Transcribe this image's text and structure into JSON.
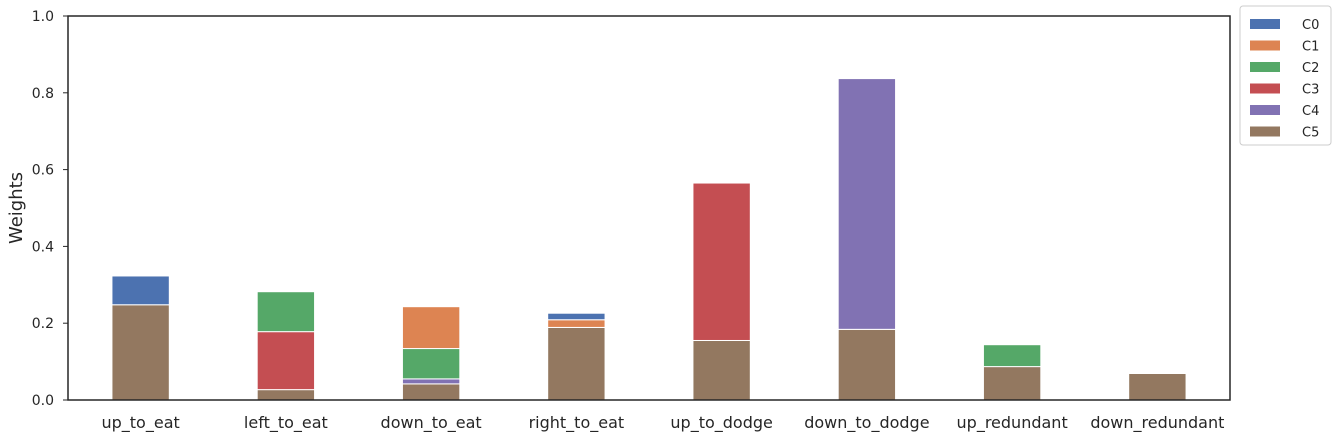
{
  "chart_data": {
    "type": "bar",
    "stacked": true,
    "categories": [
      "up_to_eat",
      "left_to_eat",
      "down_to_eat",
      "right_to_eat",
      "up_to_dodge",
      "down_to_dodge",
      "up_redundant",
      "down_redundant"
    ],
    "series": [
      {
        "name": "C0",
        "color": "#4c72b0",
        "values": [
          0.075,
          0,
          0,
          0.017,
          0,
          0,
          0,
          0
        ]
      },
      {
        "name": "C1",
        "color": "#dd8452",
        "values": [
          0,
          0,
          0.109,
          0.02,
          0,
          0,
          0,
          0
        ]
      },
      {
        "name": "C2",
        "color": "#55a868",
        "values": [
          0,
          0.104,
          0.079,
          0,
          0,
          0,
          0.057,
          0
        ]
      },
      {
        "name": "C3",
        "color": "#c44e52",
        "values": [
          0,
          0.151,
          0,
          0,
          0.41,
          0,
          0,
          0
        ]
      },
      {
        "name": "C4",
        "color": "#8172b3",
        "values": [
          0,
          0,
          0.013,
          0,
          0,
          0.653,
          0,
          0
        ]
      },
      {
        "name": "C5",
        "color": "#937860",
        "values": [
          0.248,
          0.027,
          0.042,
          0.189,
          0.155,
          0.184,
          0.087,
          0.069
        ]
      }
    ],
    "stack_order": [
      "C5",
      "C4",
      "C3",
      "C2",
      "C1",
      "C0"
    ],
    "title": "",
    "xlabel": "",
    "ylabel": "Weights",
    "ylim": [
      0,
      1
    ],
    "yticks": [
      "0.0",
      "0.2",
      "0.4",
      "0.6",
      "0.8",
      "1.0"
    ],
    "grid": false,
    "legend_position": "outside-top-right"
  }
}
